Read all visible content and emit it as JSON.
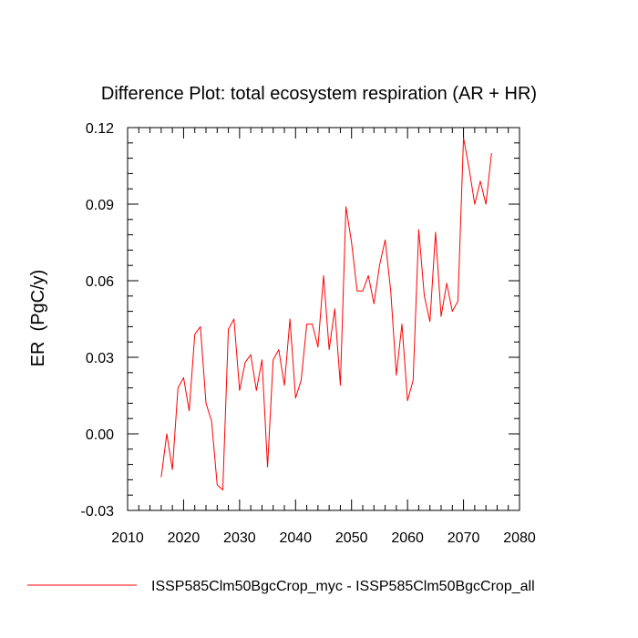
{
  "chart_data": {
    "type": "line",
    "title": "Difference Plot: total ecosystem respiration (AR + HR)",
    "xlabel": "",
    "ylabel": "ER  (PgC/y)",
    "xlim": [
      2010,
      2080
    ],
    "ylim": [
      -0.03,
      0.12
    ],
    "xticks": [
      2010,
      2020,
      2030,
      2040,
      2050,
      2060,
      2070,
      2080
    ],
    "xtick_labels": [
      "2010",
      "2020",
      "2030",
      "2040",
      "2050",
      "2060",
      "2070",
      "2080"
    ],
    "yticks": [
      -0.03,
      0.0,
      0.03,
      0.06,
      0.09,
      0.12
    ],
    "ytick_labels": [
      "-0.03",
      "0.00",
      "0.03",
      "0.06",
      "0.09",
      "0.12"
    ],
    "grid": false,
    "legend_position": "bottom",
    "series": [
      {
        "name": "ISSP585Clm50BgcCrop_myc - ISSP585Clm50BgcCrop_all",
        "color": "#ff0000",
        "x": [
          2016,
          2017,
          2018,
          2019,
          2020,
          2021,
          2022,
          2023,
          2024,
          2025,
          2026,
          2027,
          2028,
          2029,
          2030,
          2031,
          2032,
          2033,
          2034,
          2035,
          2036,
          2037,
          2038,
          2039,
          2040,
          2041,
          2042,
          2043,
          2044,
          2045,
          2046,
          2047,
          2048,
          2049,
          2050,
          2051,
          2052,
          2053,
          2054,
          2055,
          2056,
          2057,
          2058,
          2059,
          2060,
          2061,
          2062,
          2063,
          2064,
          2065,
          2066,
          2067,
          2068,
          2069,
          2070,
          2071,
          2072,
          2073,
          2074,
          2075
        ],
        "y": [
          -0.017,
          0.0,
          -0.014,
          0.018,
          0.022,
          0.009,
          0.039,
          0.042,
          0.012,
          0.005,
          -0.02,
          -0.022,
          0.041,
          0.045,
          0.017,
          0.028,
          0.031,
          0.017,
          0.029,
          -0.013,
          0.029,
          0.033,
          0.019,
          0.045,
          0.014,
          0.021,
          0.043,
          0.043,
          0.034,
          0.062,
          0.033,
          0.049,
          0.019,
          0.089,
          0.075,
          0.056,
          0.056,
          0.062,
          0.051,
          0.066,
          0.076,
          0.056,
          0.023,
          0.043,
          0.013,
          0.021,
          0.08,
          0.054,
          0.044,
          0.079,
          0.046,
          0.059,
          0.048,
          0.052,
          0.116,
          0.104,
          0.09,
          0.099,
          0.09,
          0.11
        ]
      }
    ]
  }
}
